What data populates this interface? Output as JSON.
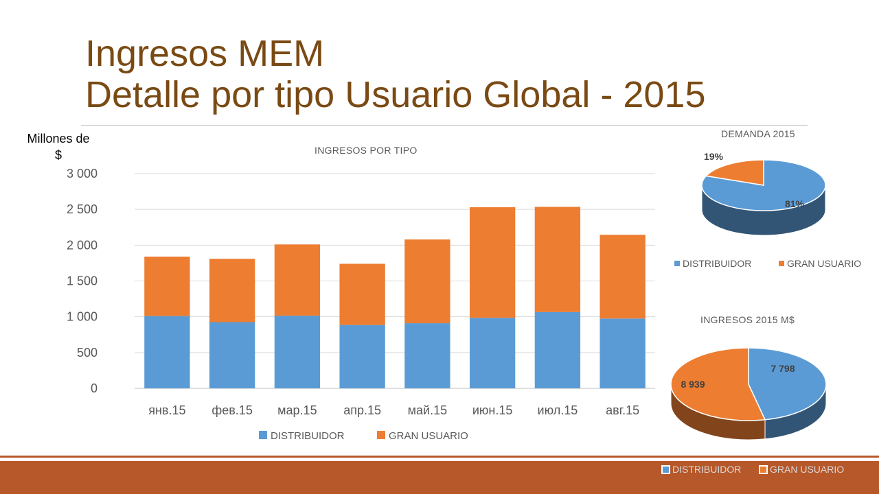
{
  "slide": {
    "title_line1": "Ingresos MEM",
    "title_line2": "Detalle por tipo Usuario Global - 2015",
    "units_label_line1": "Millones de",
    "units_label_line2": "$"
  },
  "colors": {
    "distribuidor": "#5b9bd5",
    "gran_usuario": "#ed7d31",
    "title": "#7a4a14",
    "footer": "#b6582a"
  },
  "chart_data": [
    {
      "type": "bar",
      "stacked": true,
      "title": "INGRESOS POR TIPO",
      "categories": [
        "янв.15",
        "фев.15",
        "мар.15",
        "апр.15",
        "май.15",
        "июн.15",
        "июл.15",
        "авг.15"
      ],
      "series": [
        {
          "name": "DISTRIBUIDOR",
          "values": [
            1010,
            925,
            1015,
            885,
            910,
            985,
            1065,
            975
          ]
        },
        {
          "name": "GRAN USUARIO",
          "values": [
            830,
            885,
            995,
            855,
            1170,
            1545,
            1470,
            1170
          ]
        }
      ],
      "ylim": [
        0,
        3000
      ],
      "yticks": [
        0,
        500,
        1000,
        1500,
        2000,
        2500,
        3000
      ],
      "ytick_labels": [
        "0",
        "500",
        "1 000",
        "1 500",
        "2 000",
        "2 500",
        "3 000"
      ],
      "grid": true,
      "legend": "bottom"
    },
    {
      "type": "pie",
      "title": "DEMANDA 2015",
      "labels": [
        "DISTRIBUIDOR",
        "GRAN USUARIO"
      ],
      "values": [
        81,
        19
      ],
      "data_labels": [
        "81%",
        "19%"
      ],
      "legend": "bottom"
    },
    {
      "type": "pie",
      "title": "INGRESOS 2015 M$",
      "labels": [
        "DISTRIBUIDOR",
        "GRAN USUARIO"
      ],
      "values": [
        7798,
        8939
      ],
      "data_labels": [
        "7 798",
        "8 939"
      ],
      "legend": "bottom"
    }
  ]
}
